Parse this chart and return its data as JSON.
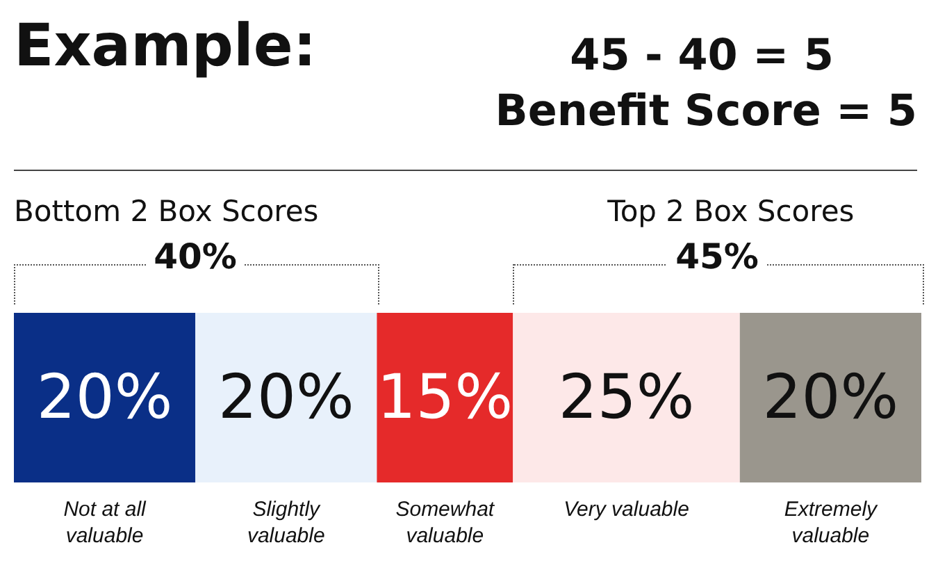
{
  "chart_data": {
    "type": "bar",
    "stacked": true,
    "orientation": "horizontal",
    "categories": [
      null
    ],
    "xlim": [
      0,
      100
    ],
    "tick_labels": false,
    "legend": false,
    "annotations": [
      "Example:",
      "45 - 40 = 5",
      "Benefit Score = 5",
      "Bottom 2 Box Scores",
      "40%",
      "Top 2 Box Scores",
      "45%"
    ],
    "series": [
      {
        "name": "Not at all valuable",
        "color": "#0a2f87",
        "values": [
          20
        ],
        "value_labels": [
          "20%"
        ]
      },
      {
        "name": "Slightly valuable",
        "color": "#e8f1fb",
        "values": [
          20
        ],
        "value_labels": [
          "20%"
        ]
      },
      {
        "name": "Somewhat valuable",
        "color": "#e52a2a",
        "values": [
          15
        ],
        "value_labels": [
          "15%"
        ]
      },
      {
        "name": "Very valuable",
        "color": "#fde8e8",
        "values": [
          25
        ],
        "value_labels": [
          "25%"
        ]
      },
      {
        "name": "Extremely valuable",
        "color": "#9a968d",
        "values": [
          20
        ],
        "value_labels": [
          "20%"
        ]
      }
    ]
  }
}
